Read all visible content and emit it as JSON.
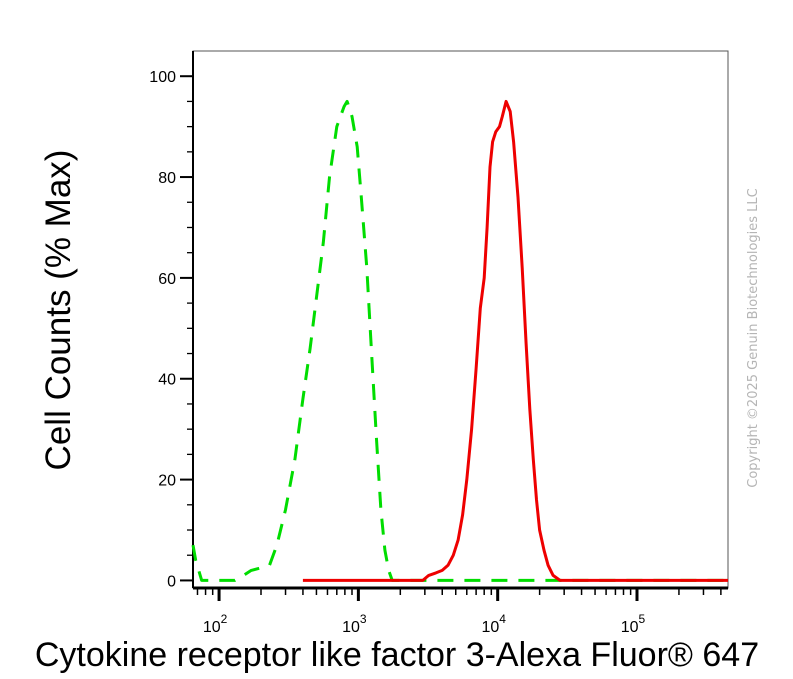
{
  "chart_data": {
    "type": "line",
    "xlabel": "Cytokine receptor like factor 3-Alexa Fluor® 647",
    "ylabel": "Cell Counts (% Max)",
    "x_scale": "log",
    "xlim": [
      65,
      450000
    ],
    "ylim": [
      -1.5,
      105
    ],
    "x_ticks": [
      {
        "value": 100,
        "base": "10",
        "exp": "2"
      },
      {
        "value": 1000,
        "base": "10",
        "exp": "3"
      },
      {
        "value": 10000,
        "base": "10",
        "exp": "4"
      },
      {
        "value": 100000,
        "base": "10",
        "exp": "5"
      }
    ],
    "y_ticks": [
      0,
      20,
      40,
      60,
      80,
      100
    ],
    "grid": false,
    "series": [
      {
        "color": "#00dd00",
        "style": "dashed",
        "points": [
          [
            65,
            7
          ],
          [
            68,
            4
          ],
          [
            75,
            0
          ],
          [
            90,
            0
          ],
          [
            110,
            0
          ],
          [
            130,
            0
          ],
          [
            150,
            1
          ],
          [
            170,
            2
          ],
          [
            200,
            2.5
          ],
          [
            230,
            3
          ],
          [
            260,
            7
          ],
          [
            300,
            14
          ],
          [
            350,
            24
          ],
          [
            400,
            36
          ],
          [
            450,
            46
          ],
          [
            500,
            56
          ],
          [
            560,
            67
          ],
          [
            620,
            80
          ],
          [
            700,
            90
          ],
          [
            790,
            94
          ],
          [
            830,
            95
          ],
          [
            900,
            92
          ],
          [
            980,
            86
          ],
          [
            1050,
            76
          ],
          [
            1150,
            62
          ],
          [
            1250,
            44
          ],
          [
            1350,
            28
          ],
          [
            1450,
            14
          ],
          [
            1550,
            6
          ],
          [
            1650,
            2
          ],
          [
            1750,
            0
          ],
          [
            1900,
            0
          ],
          [
            2500,
            0
          ],
          [
            5000,
            0
          ],
          [
            10000,
            0
          ],
          [
            20000,
            0
          ],
          [
            40000,
            0
          ],
          [
            80000,
            0
          ],
          [
            160000,
            0
          ],
          [
            300000,
            0
          ],
          [
            450000,
            0
          ]
        ]
      },
      {
        "color": "#ee0000",
        "style": "solid",
        "points": [
          [
            400,
            0
          ],
          [
            1000,
            0
          ],
          [
            2000,
            0
          ],
          [
            2900,
            0
          ],
          [
            3200,
            1
          ],
          [
            3600,
            1.5
          ],
          [
            4000,
            2
          ],
          [
            4400,
            3
          ],
          [
            4800,
            5
          ],
          [
            5200,
            8
          ],
          [
            5600,
            13
          ],
          [
            6000,
            20
          ],
          [
            6500,
            30
          ],
          [
            7000,
            42
          ],
          [
            7500,
            54
          ],
          [
            8000,
            60
          ],
          [
            8400,
            70
          ],
          [
            8800,
            82
          ],
          [
            9200,
            87
          ],
          [
            9700,
            89
          ],
          [
            10300,
            90
          ],
          [
            10800,
            92
          ],
          [
            11500,
            95
          ],
          [
            12300,
            93
          ],
          [
            13000,
            87
          ],
          [
            14000,
            76
          ],
          [
            15000,
            62
          ],
          [
            16000,
            47
          ],
          [
            17000,
            34
          ],
          [
            18000,
            24
          ],
          [
            19000,
            16
          ],
          [
            20000,
            10
          ],
          [
            21500,
            6
          ],
          [
            23000,
            3
          ],
          [
            25000,
            1
          ],
          [
            28000,
            0
          ],
          [
            35000,
            0
          ],
          [
            60000,
            0
          ],
          [
            100000,
            0
          ],
          [
            200000,
            0
          ],
          [
            450000,
            0
          ]
        ]
      }
    ]
  },
  "watermark": "Copyright ©2025 Genuin Biotechnologies LLC"
}
